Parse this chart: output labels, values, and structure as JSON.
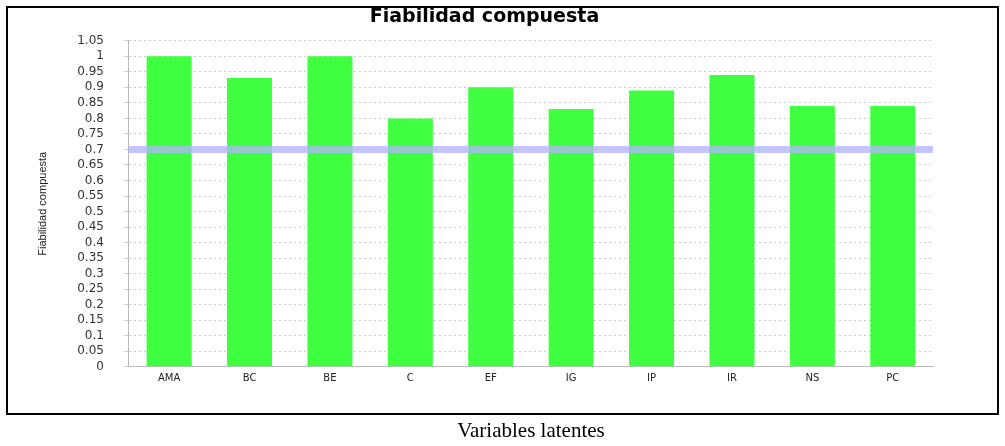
{
  "chart_data": {
    "type": "bar",
    "title": "Fiabilidad compuesta",
    "xlabel": "Variables latentes",
    "ylabel": "Fiabilidad compuesta",
    "categories": [
      "AMA",
      "BC",
      "BE",
      "C",
      "EF",
      "IG",
      "IP",
      "IR",
      "NS",
      "PC"
    ],
    "values": [
      1.0,
      0.93,
      1.0,
      0.8,
      0.9,
      0.83,
      0.89,
      0.94,
      0.84,
      0.84
    ],
    "color": "#40ff40",
    "ylim": [
      0,
      1.05
    ],
    "yticks": [
      0,
      0.05,
      0.1,
      0.15,
      0.2,
      0.25,
      0.3,
      0.35,
      0.4,
      0.45,
      0.5,
      0.55,
      0.6,
      0.65,
      0.7,
      0.75,
      0.8,
      0.85,
      0.9,
      0.95,
      1,
      1.05
    ],
    "grid": "y",
    "ref_lines": [
      {
        "axis": "y",
        "value": 0.7,
        "color": "#b3b3ff"
      }
    ]
  }
}
